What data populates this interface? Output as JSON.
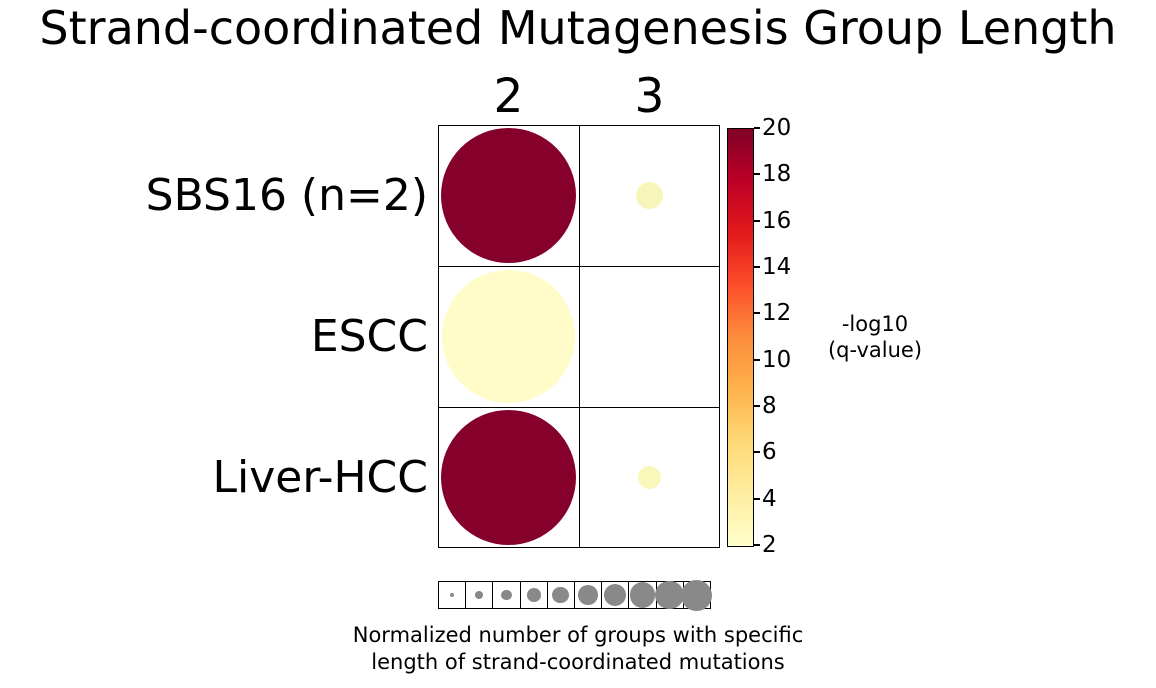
{
  "title": "Strand-coordinated Mutagenesis Group Length",
  "chart_data": {
    "type": "bubble",
    "title": "Strand-coordinated Mutagenesis Group Length",
    "columns": [
      "2",
      "3"
    ],
    "rows": [
      "SBS16 (n=2)",
      "ESCC",
      "Liver-HCC"
    ],
    "cells": [
      {
        "row": "SBS16 (n=2)",
        "col": "2",
        "neg_log10_q": 20,
        "size_norm": 0.96,
        "color": "#85012b"
      },
      {
        "row": "SBS16 (n=2)",
        "col": "3",
        "neg_log10_q": 2.5,
        "size_norm": 0.19,
        "color": "#f7f6ba"
      },
      {
        "row": "ESCC",
        "col": "2",
        "neg_log10_q": 2.5,
        "size_norm": 0.94,
        "color": "#fffcc9"
      },
      {
        "row": "Liver-HCC",
        "col": "2",
        "neg_log10_q": 20,
        "size_norm": 0.96,
        "color": "#85012b"
      },
      {
        "row": "Liver-HCC",
        "col": "3",
        "neg_log10_q": 2.5,
        "size_norm": 0.17,
        "color": "#faf7ba"
      }
    ],
    "colorbar": {
      "label_line1": "-log10",
      "label_line2": "(q-value)",
      "vmin": 2,
      "vmax": 20,
      "ticks": [
        20,
        18,
        16,
        14,
        12,
        10,
        8,
        6,
        4,
        2
      ],
      "colormap": "YlOrRd",
      "colors_top_to_bottom": [
        "#800026",
        "#bd0026",
        "#e31a1c",
        "#fc4e2a",
        "#fd8d3c",
        "#feb24c",
        "#fed976",
        "#ffeda0",
        "#ffffcc"
      ]
    },
    "size_legend": {
      "caption_line1": "Normalized number of groups with specific",
      "caption_line2": "length of strand-coordinated mutations",
      "circle_color": "#898989",
      "sizes_norm": [
        0.16,
        0.27,
        0.38,
        0.49,
        0.6,
        0.7,
        0.8,
        0.91,
        1.01,
        1.1
      ]
    }
  }
}
